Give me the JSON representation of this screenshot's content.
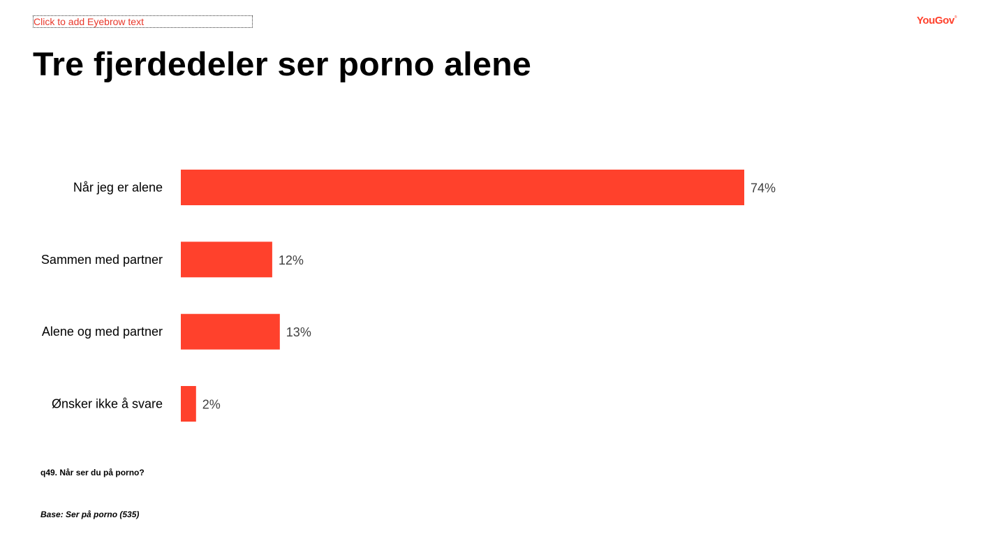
{
  "eyebrow": "Click to add Eyebrow text",
  "logo": {
    "text": "YouGov",
    "mark": "®"
  },
  "title": "Tre fjerdedeler ser porno alene",
  "colors": {
    "bar": "#ff412c",
    "category_label": "#000000",
    "value_label": "#404040"
  },
  "chart_data": {
    "type": "bar",
    "orientation": "horizontal",
    "categories": [
      "Når jeg er alene",
      "Sammen med partner",
      "Alene og med partner",
      "Ønsker ikke å svare"
    ],
    "values": [
      74,
      12,
      13,
      2
    ],
    "value_labels": [
      "74%",
      "12%",
      "13%",
      "2%"
    ],
    "unit": "%",
    "xlim": [
      0,
      100
    ],
    "grid": false,
    "legend": "none"
  },
  "footnotes": {
    "question": "q49. Når ser du på porno?",
    "base": "Base: Ser på porno (535)"
  }
}
